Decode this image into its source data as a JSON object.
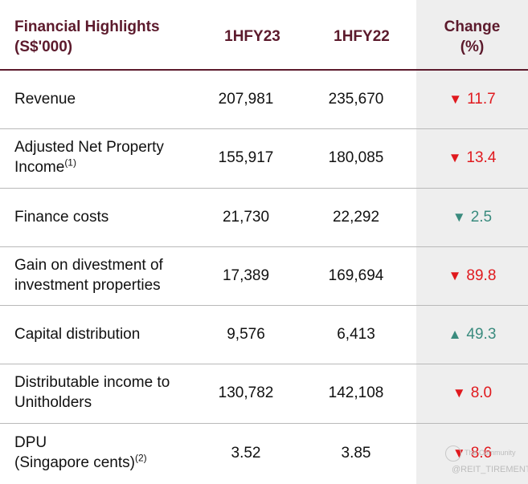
{
  "header": {
    "label_line1": "Financial Highlights",
    "label_line2": "(S$'000)",
    "col1": "1HFY23",
    "col2": "1HFY22",
    "change_line1": "Change",
    "change_line2": "(%)"
  },
  "rows": [
    {
      "label_line1": "Revenue",
      "label_line2": "",
      "sup": "",
      "v1": "207,981",
      "v2": "235,670",
      "arrow": "▼",
      "change": "11.7",
      "direction": "down",
      "color": "#e0191e"
    },
    {
      "label_line1": "Adjusted Net Property",
      "label_line2": "Income",
      "sup": "(1)",
      "v1": "155,917",
      "v2": "180,085",
      "arrow": "▼",
      "change": "13.4",
      "direction": "down",
      "color": "#e0191e"
    },
    {
      "label_line1": "Finance costs",
      "label_line2": "",
      "sup": "",
      "v1": "21,730",
      "v2": "22,292",
      "arrow": "▼",
      "change": "2.5",
      "direction": "down",
      "color": "#3a8b7e"
    },
    {
      "label_line1": "Gain on divestment of",
      "label_line2": "investment properties",
      "sup": "",
      "v1": "17,389",
      "v2": "169,694",
      "arrow": "▼",
      "change": "89.8",
      "direction": "down",
      "color": "#e0191e"
    },
    {
      "label_line1": "Capital distribution",
      "label_line2": "",
      "sup": "",
      "v1": "9,576",
      "v2": "6,413",
      "arrow": "▲",
      "change": "49.3",
      "direction": "up",
      "color": "#3a8b7e"
    },
    {
      "label_line1": "Distributable income to",
      "label_line2": "Unitholders",
      "sup": "",
      "v1": "130,782",
      "v2": "142,108",
      "arrow": "▼",
      "change": "8.0",
      "direction": "down",
      "color": "#e0191e"
    },
    {
      "label_line1": "DPU",
      "label_line2": "(Singapore cents)",
      "sup": "(2)",
      "v1": "3.52",
      "v2": "3.85",
      "arrow": "▼",
      "change": "8.6",
      "direction": "down",
      "color": "#e0191e"
    }
  ],
  "watermark": {
    "top": "The Community",
    "bottom": "@REIT_TIREMENT"
  }
}
